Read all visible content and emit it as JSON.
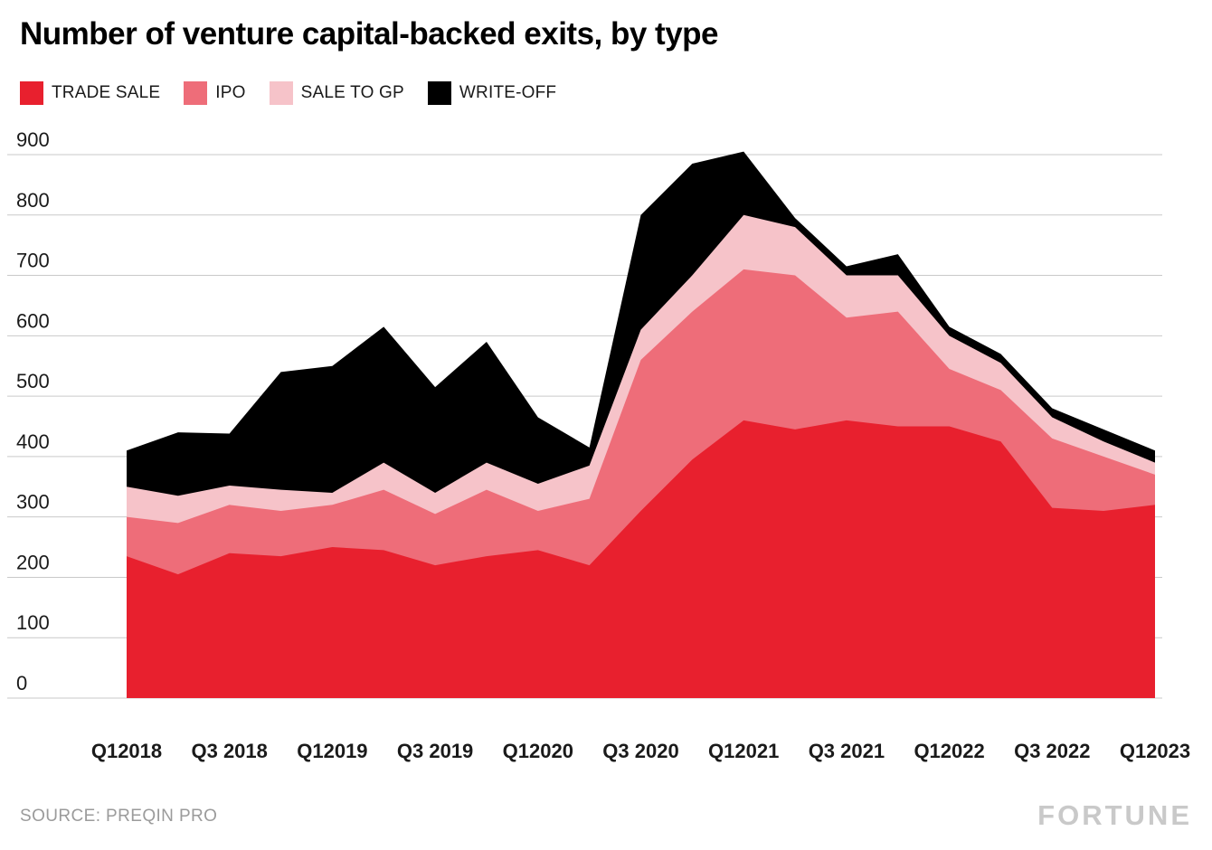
{
  "title": "Number of venture capital-backed exits, by type",
  "source": "SOURCE: PREQIN PRO",
  "brand": "FORTUNE",
  "legend": [
    {
      "label": "TRADE SALE",
      "color": "#e8202e"
    },
    {
      "label": "IPO",
      "color": "#ee6d79"
    },
    {
      "label": "SALE TO GP",
      "color": "#f6c3c9"
    },
    {
      "label": "WRITE-OFF",
      "color": "#000000"
    }
  ],
  "chart_data": {
    "type": "area",
    "stacked": true,
    "title": "Number of venture capital-backed exits, by type",
    "x": [
      "Q1 2018",
      "Q2 2018",
      "Q3 2018",
      "Q4 2018",
      "Q1 2019",
      "Q2 2019",
      "Q3 2019",
      "Q4 2019",
      "Q1 2020",
      "Q2 2020",
      "Q3 2020",
      "Q4 2020",
      "Q1 2021",
      "Q2 2021",
      "Q3 2021",
      "Q4 2021",
      "Q1 2022",
      "Q2 2022",
      "Q3 2022",
      "Q4 2022",
      "Q1 2023"
    ],
    "x_tick_labels": [
      "Q12018",
      "Q3 2018",
      "Q12019",
      "Q3 2019",
      "Q12020",
      "Q3 2020",
      "Q12021",
      "Q3 2021",
      "Q12022",
      "Q3 2022",
      "Q12023"
    ],
    "series": [
      {
        "name": "TRADE SALE",
        "color": "#e8202e",
        "values": [
          235,
          205,
          240,
          235,
          250,
          245,
          220,
          235,
          245,
          220,
          310,
          395,
          460,
          445,
          460,
          450,
          450,
          425,
          315,
          310,
          320
        ]
      },
      {
        "name": "IPO",
        "color": "#ee6d79",
        "values": [
          65,
          85,
          80,
          75,
          70,
          100,
          85,
          110,
          65,
          110,
          250,
          245,
          250,
          255,
          170,
          190,
          95,
          85,
          115,
          90,
          50
        ]
      },
      {
        "name": "SALE TO GP",
        "color": "#f6c3c9",
        "values": [
          50,
          45,
          32,
          35,
          20,
          45,
          35,
          45,
          45,
          55,
          50,
          60,
          90,
          80,
          70,
          60,
          55,
          45,
          35,
          25,
          20
        ]
      },
      {
        "name": "WRITE-OFF",
        "color": "#000000",
        "values": [
          60,
          105,
          86,
          195,
          210,
          225,
          175,
          200,
          110,
          30,
          190,
          185,
          105,
          15,
          15,
          35,
          15,
          15,
          15,
          20,
          20
        ]
      }
    ],
    "ylim": [
      0,
      900
    ],
    "yticks": [
      0,
      100,
      200,
      300,
      400,
      500,
      600,
      700,
      800,
      900
    ],
    "grid": true,
    "legend_position": "top"
  }
}
